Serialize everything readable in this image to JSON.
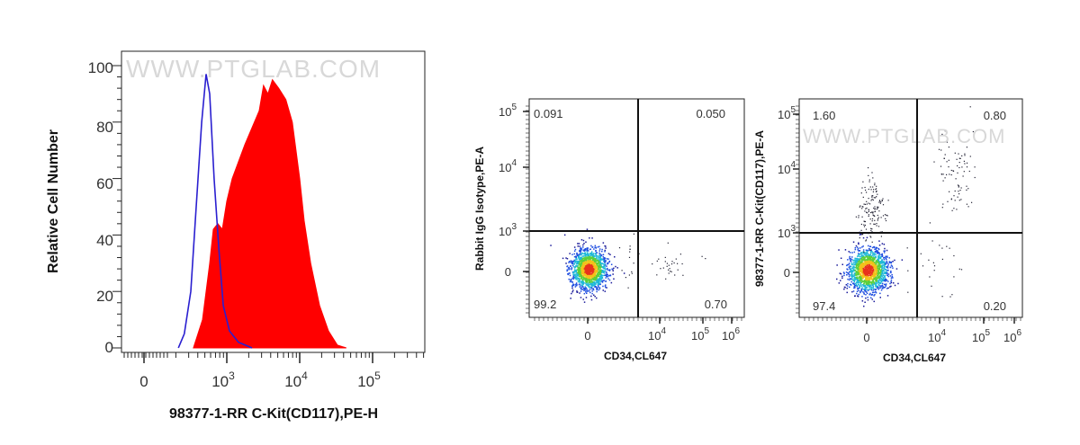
{
  "chart_data": [
    {
      "type": "area",
      "xlabel": "98377-1-RR C-Kit(CD117),PE-H",
      "ylabel": "Relative Cell Number",
      "ylim": [
        0,
        100
      ],
      "x_scale": "biexponential",
      "x_ticks": [
        {
          "label": "0",
          "exp": ""
        },
        {
          "label": "10",
          "exp": "3"
        },
        {
          "label": "10",
          "exp": "4"
        },
        {
          "label": "10",
          "exp": "5"
        }
      ],
      "y_ticks": [
        "0",
        "20",
        "40",
        "60",
        "80",
        "100"
      ],
      "watermark": "WWW.PTGLAB.COM",
      "series": [
        {
          "style": "outline",
          "color": "#2a1fd0",
          "points": [
            [
              159,
              0
            ],
            [
              204,
              5
            ],
            [
              263,
              20
            ],
            [
              323,
              50
            ],
            [
              397,
              80
            ],
            [
              469,
              97
            ],
            [
              535,
              90
            ],
            [
              630,
              60
            ],
            [
              750,
              35
            ],
            [
              880,
              15
            ],
            [
              1089,
              6
            ],
            [
              1447,
              2
            ],
            [
              2215,
              0
            ]
          ]
        },
        {
          "style": "filled",
          "color": "#ff0000",
          "points": [
            [
              291,
              0
            ],
            [
              410,
              10
            ],
            [
              535,
              30
            ],
            [
              610,
              42
            ],
            [
              720,
              44
            ],
            [
              850,
              42
            ],
            [
              1000,
              52
            ],
            [
              1186,
              60
            ],
            [
              1447,
              66
            ],
            [
              1765,
              72
            ],
            [
              2215,
              78
            ],
            [
              2780,
              84
            ],
            [
              3190,
              93
            ],
            [
              3670,
              90
            ],
            [
              4230,
              95
            ],
            [
              5150,
              92
            ],
            [
              6460,
              88
            ],
            [
              7910,
              80
            ],
            [
              10000,
              60
            ],
            [
              11530,
              45
            ],
            [
              14150,
              30
            ],
            [
              18740,
              15
            ],
            [
              24830,
              6
            ],
            [
              32900,
              1
            ],
            [
              43600,
              0
            ]
          ]
        }
      ]
    },
    {
      "type": "scatter",
      "xlabel": "CD34,CL647",
      "ylabel": "Rabbit IgG Isotype,PE-A",
      "x_ticks": [
        {
          "label": "0",
          "exp": ""
        },
        {
          "label": "10",
          "exp": "4"
        },
        {
          "label": "10",
          "exp": "5"
        },
        {
          "label": "10",
          "exp": "6"
        }
      ],
      "y_ticks": [
        {
          "label": "0",
          "exp": ""
        },
        {
          "label": "10",
          "exp": "3"
        },
        {
          "label": "10",
          "exp": "4"
        },
        {
          "label": "10",
          "exp": "5"
        }
      ],
      "quadrants": {
        "upper_left": "0.091",
        "upper_right": "0.050",
        "lower_left": "99.2",
        "lower_right": "0.70"
      }
    },
    {
      "type": "scatter",
      "xlabel": "CD34,CL647",
      "ylabel": "98377-1-RR C-Kit(CD117),PE-A",
      "x_ticks": [
        {
          "label": "0",
          "exp": ""
        },
        {
          "label": "10",
          "exp": "4"
        },
        {
          "label": "10",
          "exp": "5"
        },
        {
          "label": "10",
          "exp": "6"
        }
      ],
      "y_ticks": [
        {
          "label": "0",
          "exp": ""
        },
        {
          "label": "10",
          "exp": "3"
        },
        {
          "label": "10",
          "exp": "4"
        },
        {
          "label": "10",
          "exp": "5"
        }
      ],
      "quadrants": {
        "upper_left": "1.60",
        "upper_right": "0.80",
        "lower_left": "97.4",
        "lower_right": "0.20"
      },
      "watermark": "WWW.PTGLAB.COM"
    }
  ]
}
